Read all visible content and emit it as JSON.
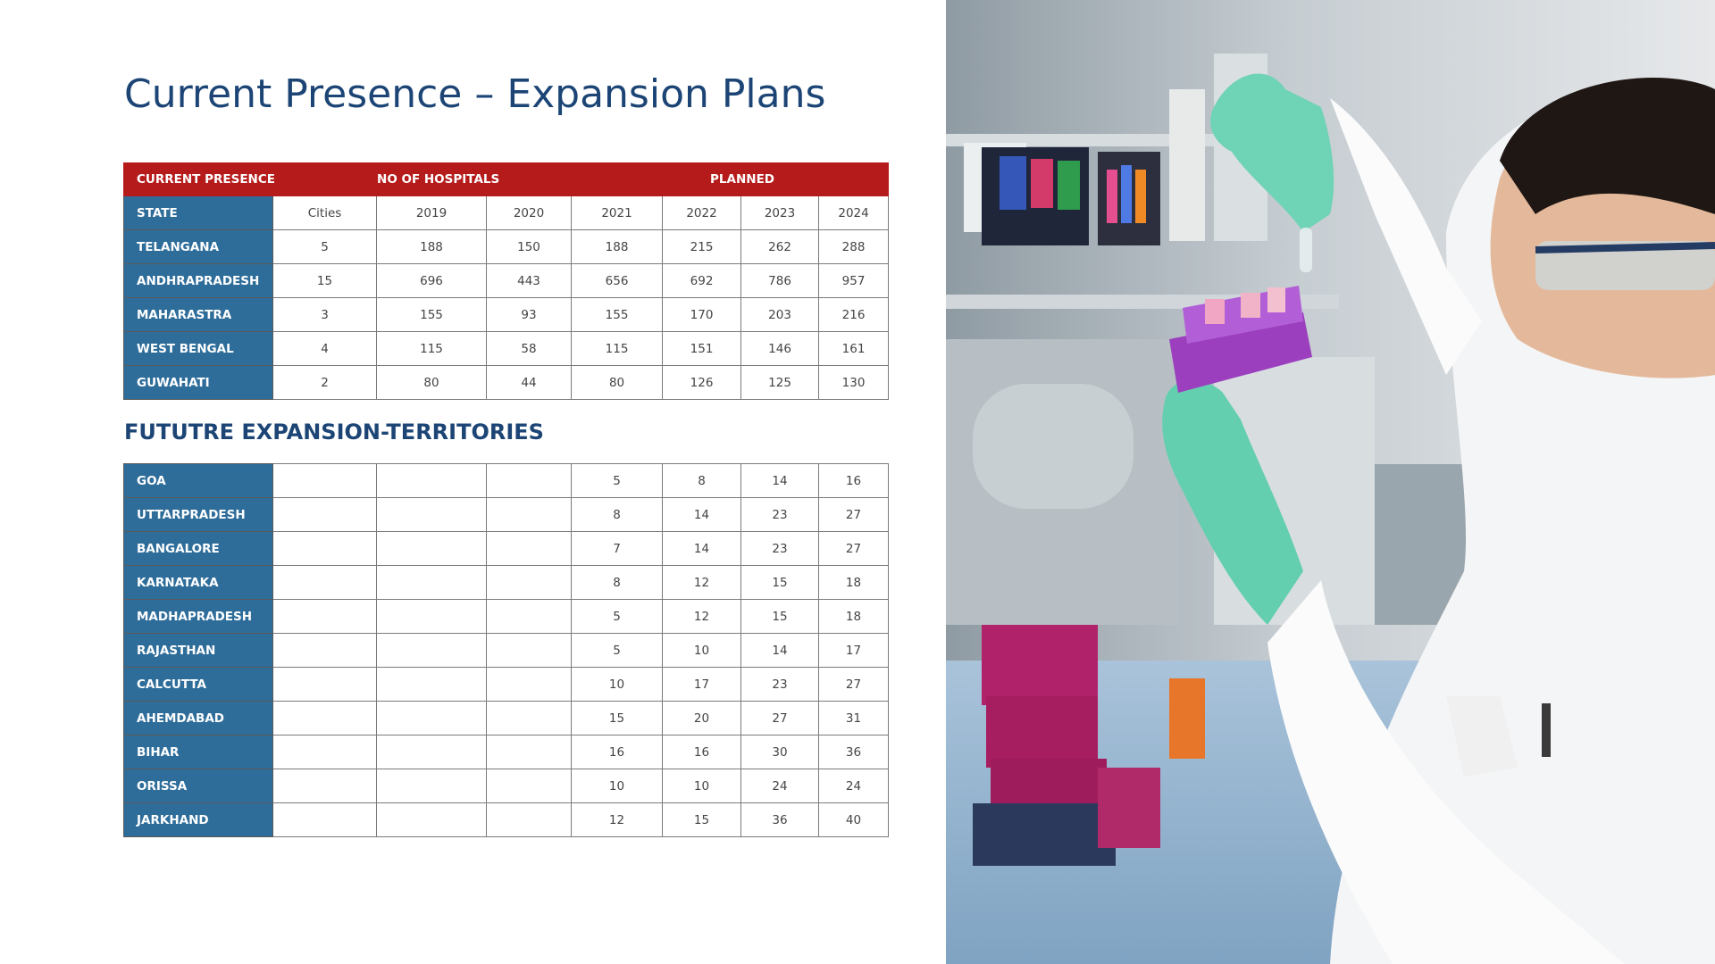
{
  "slide": {
    "title": "Current Presence – Expansion Plans",
    "section_title": "FUTUTRE EXPANSION-TERRITORIES"
  },
  "current_table": {
    "group_headers": [
      "CURRENT PRESENCE",
      "NO OF HOSPITALS",
      "PLANNED"
    ],
    "columns": [
      "STATE",
      "Cities",
      "2019",
      "2020",
      "2021",
      "2022",
      "2023",
      "2024"
    ],
    "rows": [
      [
        "TELANGANA",
        "5",
        "188",
        "150",
        "188",
        "215",
        "262",
        "288"
      ],
      [
        "ANDHRAPRADESH",
        "15",
        "696",
        "443",
        "656",
        "692",
        "786",
        "957"
      ],
      [
        "MAHARASTRA",
        "3",
        "155",
        "93",
        "155",
        "170",
        "203",
        "216"
      ],
      [
        "WEST BENGAL",
        "4",
        "115",
        "58",
        "115",
        "151",
        "146",
        "161"
      ],
      [
        "GUWAHATI",
        "2",
        "80",
        "44",
        "80",
        "126",
        "125",
        "130"
      ]
    ]
  },
  "future_table": {
    "rows": [
      [
        "GOA",
        "",
        "",
        "",
        "5",
        "8",
        "14",
        "16"
      ],
      [
        "UTTARPRADESH",
        "",
        "",
        "",
        "8",
        "14",
        "23",
        "27"
      ],
      [
        "BANGALORE",
        "",
        "",
        "",
        "7",
        "14",
        "23",
        "27"
      ],
      [
        "KARNATAKA",
        "",
        "",
        "",
        "8",
        "12",
        "15",
        "18"
      ],
      [
        "MADHAPRADESH",
        "",
        "",
        "",
        "5",
        "12",
        "15",
        "18"
      ],
      [
        "RAJASTHAN",
        "",
        "",
        "",
        "5",
        "10",
        "14",
        "17"
      ],
      [
        "CALCUTTA",
        "",
        "",
        "",
        "10",
        "17",
        "23",
        "27"
      ],
      [
        "AHEMDABAD",
        "",
        "",
        "",
        "15",
        "20",
        "27",
        "31"
      ],
      [
        "BIHAR",
        "",
        "",
        "",
        "16",
        "16",
        "30",
        "36"
      ],
      [
        "ORISSA",
        "",
        "",
        "",
        "10",
        "10",
        "24",
        "24"
      ],
      [
        "JARKHAND",
        "",
        "",
        "",
        "12",
        "15",
        "36",
        "40"
      ]
    ]
  },
  "colors": {
    "title": "#1c4576",
    "header_red": "#b61b1b",
    "state_blue": "#2e6d9a"
  },
  "image": {
    "icon": "lab-scientist-photo"
  }
}
